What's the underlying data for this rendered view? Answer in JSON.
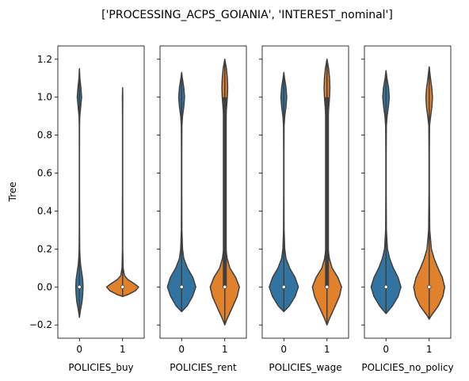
{
  "chart_data": {
    "type": "violin",
    "suptitle": "['PROCESSING_ACPS_GOIANIA', 'INTEREST_nominal']",
    "ylabel": "Tree",
    "ylim": [
      -0.27,
      1.27
    ],
    "yticks": [
      -0.2,
      0.0,
      0.2,
      0.4,
      0.6,
      0.8,
      1.0,
      1.2
    ],
    "ytick_labels": [
      "−0.2",
      "0.0",
      "0.2",
      "0.4",
      "0.6",
      "0.8",
      "1.0",
      "1.2"
    ],
    "categories": [
      "0",
      "1"
    ],
    "colors": {
      "0": "#3274a1",
      "1": "#e1812c",
      "edge": "#3f3f3f",
      "median": "#ffffff"
    },
    "panels": [
      {
        "xlabel": "POLICIES_buy",
        "violins": [
          {
            "category": "0",
            "min": -0.16,
            "max": 1.15,
            "q1": 0.0,
            "median": 0.0,
            "q3": 0.0,
            "profile": [
              [
                -0.16,
                0.0
              ],
              [
                -0.12,
                0.06
              ],
              [
                -0.08,
                0.14
              ],
              [
                -0.04,
                0.18
              ],
              [
                0.0,
                0.2
              ],
              [
                0.04,
                0.18
              ],
              [
                0.08,
                0.12
              ],
              [
                0.12,
                0.06
              ],
              [
                0.16,
                0.03
              ],
              [
                0.2,
                0.015
              ],
              [
                0.3,
                0.008
              ],
              [
                0.5,
                0.005
              ],
              [
                0.7,
                0.005
              ],
              [
                0.85,
                0.008
              ],
              [
                0.9,
                0.02
              ],
              [
                0.95,
                0.07
              ],
              [
                1.0,
                0.12
              ],
              [
                1.05,
                0.08
              ],
              [
                1.1,
                0.025
              ],
              [
                1.15,
                0.0
              ]
            ]
          },
          {
            "category": "1",
            "min": -0.05,
            "max": 1.05,
            "q1": 0.0,
            "median": 0.0,
            "q3": 0.0,
            "profile": [
              [
                -0.05,
                0.0
              ],
              [
                -0.04,
                0.3
              ],
              [
                -0.02,
                0.7
              ],
              [
                0.0,
                0.88
              ],
              [
                0.02,
                0.6
              ],
              [
                0.04,
                0.28
              ],
              [
                0.06,
                0.1
              ],
              [
                0.1,
                0.03
              ],
              [
                0.2,
                0.008
              ],
              [
                0.5,
                0.005
              ],
              [
                0.9,
                0.005
              ],
              [
                1.0,
                0.01
              ],
              [
                1.05,
                0.0
              ]
            ]
          }
        ]
      },
      {
        "xlabel": "POLICIES_rent",
        "violins": [
          {
            "category": "0",
            "min": -0.13,
            "max": 1.13,
            "q1": 0.0,
            "median": 0.0,
            "q3": 0.0,
            "profile": [
              [
                -0.13,
                0.0
              ],
              [
                -0.1,
                0.3
              ],
              [
                -0.05,
                0.6
              ],
              [
                0.0,
                0.78
              ],
              [
                0.05,
                0.62
              ],
              [
                0.1,
                0.32
              ],
              [
                0.15,
                0.12
              ],
              [
                0.2,
                0.05
              ],
              [
                0.3,
                0.015
              ],
              [
                0.5,
                0.008
              ],
              [
                0.7,
                0.008
              ],
              [
                0.85,
                0.015
              ],
              [
                0.9,
                0.05
              ],
              [
                0.95,
                0.12
              ],
              [
                1.0,
                0.16
              ],
              [
                1.05,
                0.12
              ],
              [
                1.1,
                0.04
              ],
              [
                1.13,
                0.0
              ]
            ]
          },
          {
            "category": "1",
            "min": -0.2,
            "max": 1.2,
            "q1": 0.0,
            "median": 0.0,
            "q3": 1.0,
            "profile": [
              [
                -0.2,
                0.0
              ],
              [
                -0.17,
                0.12
              ],
              [
                -0.1,
                0.45
              ],
              [
                -0.05,
                0.68
              ],
              [
                0.0,
                0.8
              ],
              [
                0.05,
                0.6
              ],
              [
                0.1,
                0.28
              ],
              [
                0.15,
                0.13
              ],
              [
                0.2,
                0.06
              ],
              [
                0.3,
                0.03
              ],
              [
                0.5,
                0.02
              ],
              [
                0.7,
                0.02
              ],
              [
                0.85,
                0.03
              ],
              [
                0.9,
                0.06
              ],
              [
                0.95,
                0.1
              ],
              [
                1.0,
                0.14
              ],
              [
                1.05,
                0.16
              ],
              [
                1.1,
                0.14
              ],
              [
                1.15,
                0.09
              ],
              [
                1.2,
                0.0
              ]
            ]
          }
        ]
      },
      {
        "xlabel": "POLICIES_wage",
        "violins": [
          {
            "category": "0",
            "min": -0.13,
            "max": 1.13,
            "q1": 0.0,
            "median": 0.0,
            "q3": 0.0,
            "profile": [
              [
                -0.13,
                0.0
              ],
              [
                -0.1,
                0.3
              ],
              [
                -0.05,
                0.62
              ],
              [
                0.0,
                0.8
              ],
              [
                0.05,
                0.62
              ],
              [
                0.1,
                0.32
              ],
              [
                0.15,
                0.12
              ],
              [
                0.2,
                0.05
              ],
              [
                0.3,
                0.015
              ],
              [
                0.5,
                0.008
              ],
              [
                0.7,
                0.008
              ],
              [
                0.85,
                0.015
              ],
              [
                0.9,
                0.05
              ],
              [
                0.95,
                0.12
              ],
              [
                1.0,
                0.16
              ],
              [
                1.05,
                0.12
              ],
              [
                1.1,
                0.04
              ],
              [
                1.13,
                0.0
              ]
            ]
          },
          {
            "category": "1",
            "min": -0.2,
            "max": 1.2,
            "q1": 0.0,
            "median": 0.0,
            "q3": 1.0,
            "profile": [
              [
                -0.2,
                0.0
              ],
              [
                -0.17,
                0.12
              ],
              [
                -0.1,
                0.45
              ],
              [
                -0.05,
                0.68
              ],
              [
                0.0,
                0.8
              ],
              [
                0.05,
                0.6
              ],
              [
                0.1,
                0.28
              ],
              [
                0.15,
                0.13
              ],
              [
                0.2,
                0.06
              ],
              [
                0.3,
                0.03
              ],
              [
                0.5,
                0.02
              ],
              [
                0.7,
                0.02
              ],
              [
                0.85,
                0.03
              ],
              [
                0.9,
                0.06
              ],
              [
                0.95,
                0.1
              ],
              [
                1.0,
                0.14
              ],
              [
                1.05,
                0.16
              ],
              [
                1.1,
                0.14
              ],
              [
                1.15,
                0.09
              ],
              [
                1.2,
                0.0
              ]
            ]
          }
        ]
      },
      {
        "xlabel": "POLICIES_no_policy",
        "violins": [
          {
            "category": "0",
            "min": -0.14,
            "max": 1.14,
            "q1": 0.0,
            "median": 0.0,
            "q3": 0.0,
            "profile": [
              [
                -0.14,
                0.0
              ],
              [
                -0.1,
                0.35
              ],
              [
                -0.05,
                0.66
              ],
              [
                0.0,
                0.82
              ],
              [
                0.05,
                0.66
              ],
              [
                0.1,
                0.4
              ],
              [
                0.15,
                0.2
              ],
              [
                0.2,
                0.08
              ],
              [
                0.3,
                0.02
              ],
              [
                0.5,
                0.01
              ],
              [
                0.7,
                0.01
              ],
              [
                0.85,
                0.02
              ],
              [
                0.9,
                0.06
              ],
              [
                0.95,
                0.13
              ],
              [
                1.0,
                0.18
              ],
              [
                1.05,
                0.14
              ],
              [
                1.1,
                0.05
              ],
              [
                1.14,
                0.0
              ]
            ]
          },
          {
            "category": "1",
            "min": -0.17,
            "max": 1.16,
            "q1": 0.0,
            "median": 0.0,
            "q3": 0.0,
            "profile": [
              [
                -0.17,
                0.0
              ],
              [
                -0.15,
                0.12
              ],
              [
                -0.1,
                0.5
              ],
              [
                -0.05,
                0.75
              ],
              [
                0.0,
                0.85
              ],
              [
                0.05,
                0.72
              ],
              [
                0.1,
                0.48
              ],
              [
                0.15,
                0.27
              ],
              [
                0.2,
                0.12
              ],
              [
                0.3,
                0.03
              ],
              [
                0.5,
                0.01
              ],
              [
                0.7,
                0.01
              ],
              [
                0.85,
                0.02
              ],
              [
                0.9,
                0.08
              ],
              [
                0.95,
                0.15
              ],
              [
                1.0,
                0.18
              ],
              [
                1.05,
                0.14
              ],
              [
                1.1,
                0.07
              ],
              [
                1.16,
                0.0
              ]
            ]
          }
        ]
      }
    ]
  }
}
